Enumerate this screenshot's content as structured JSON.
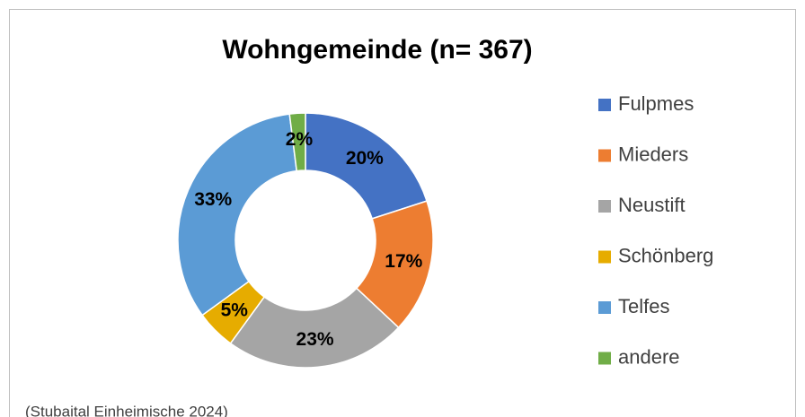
{
  "chart_data": {
    "type": "donut",
    "title": "Wohngemeinde (n= 367)",
    "categories": [
      "Fulpmes",
      "Mieders",
      "Neustift",
      "Schönberg",
      "Telfes",
      "andere"
    ],
    "series": [
      {
        "name": "Wohngemeinde",
        "values": [
          20,
          17,
          23,
          5,
          33,
          2
        ],
        "value_labels": [
          "20%",
          "17%",
          "23%",
          "5%",
          "33%",
          "2%"
        ]
      }
    ],
    "colors": [
      "#4472c4",
      "#ed7d31",
      "#a5a5a5",
      "#e6ac00",
      "#5b9bd5",
      "#70ad47"
    ],
    "legend": "right",
    "note": "(Stubaital Einheimische 2024)"
  }
}
